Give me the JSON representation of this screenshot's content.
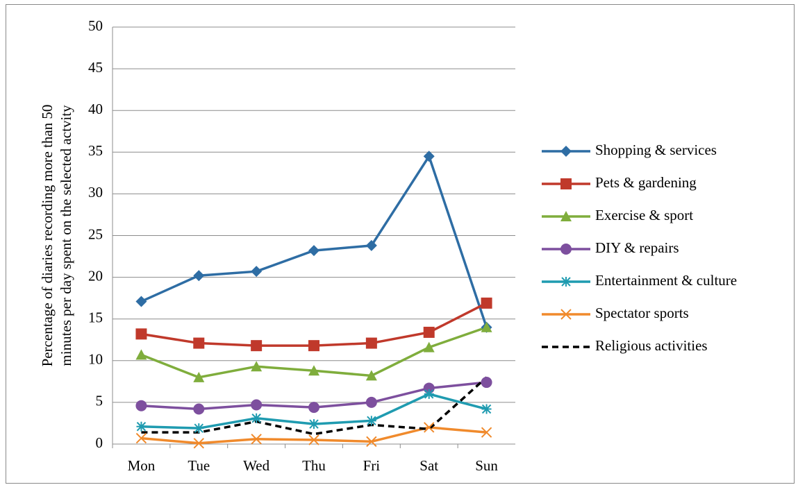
{
  "chart_data": {
    "type": "line",
    "ylabel": [
      "Percentage of diaries recording more than 50",
      "minutes per day spent on the selected actvity"
    ],
    "categories": [
      "Mon",
      "Tue",
      "Wed",
      "Thu",
      "Fri",
      "Sat",
      "Sun"
    ],
    "ylim": [
      0,
      50
    ],
    "yticks": [
      0,
      5,
      10,
      15,
      20,
      25,
      30,
      35,
      40,
      45,
      50
    ],
    "grid": true,
    "legend": "right",
    "series": [
      {
        "name": "Shopping & services",
        "color": "#2e6da4",
        "marker": "diamond",
        "values": [
          17.1,
          20.2,
          20.7,
          23.2,
          23.8,
          34.5,
          14.0
        ]
      },
      {
        "name": "Pets & gardening",
        "color": "#c0392b",
        "marker": "square",
        "values": [
          13.2,
          12.1,
          11.8,
          11.8,
          12.1,
          13.4,
          16.9
        ]
      },
      {
        "name": "Exercise & sport",
        "color": "#7fad3c",
        "marker": "triangle",
        "values": [
          10.7,
          8.0,
          9.3,
          8.8,
          8.2,
          11.6,
          14.0
        ]
      },
      {
        "name": "DIY & repairs",
        "color": "#7d4f9e",
        "marker": "circle",
        "values": [
          4.6,
          4.2,
          4.7,
          4.4,
          5.0,
          6.7,
          7.4
        ]
      },
      {
        "name": "Entertainment & culture",
        "color": "#1f9bb0",
        "marker": "asterisk",
        "values": [
          2.1,
          1.9,
          3.1,
          2.4,
          2.8,
          6.0,
          4.2
        ]
      },
      {
        "name": "Spectator sports",
        "color": "#f08a2c",
        "marker": "x",
        "values": [
          0.7,
          0.1,
          0.6,
          0.5,
          0.3,
          2.0,
          1.4
        ]
      },
      {
        "name": "Religious activities",
        "color": "#000000",
        "marker": "none",
        "dash": true,
        "values": [
          1.4,
          1.4,
          2.7,
          1.2,
          2.3,
          1.8,
          8.0
        ]
      }
    ]
  }
}
